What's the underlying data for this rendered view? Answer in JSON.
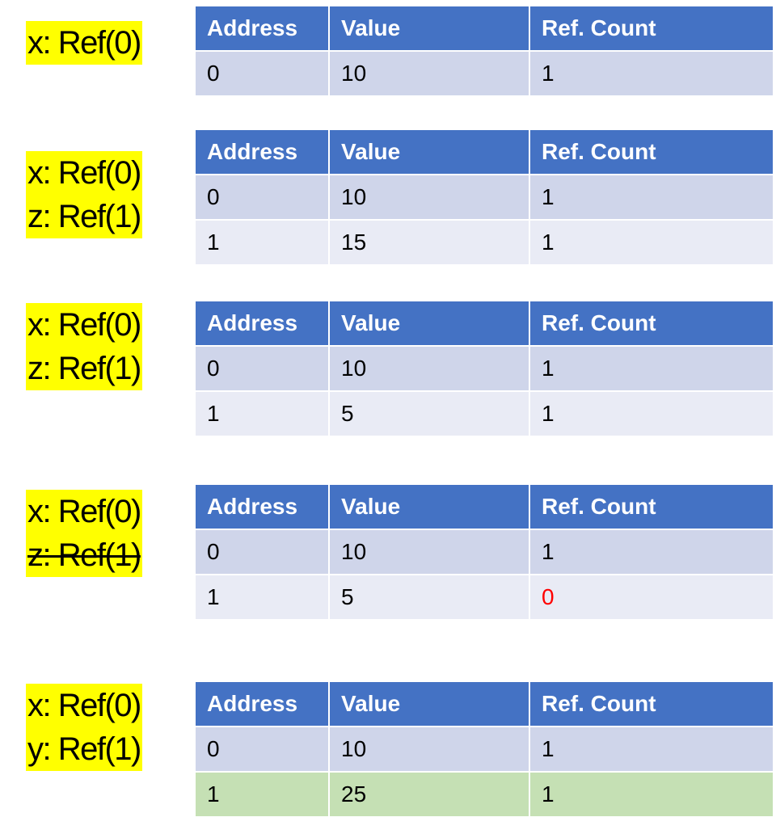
{
  "columns": [
    "Address",
    "Value",
    "Ref. Count"
  ],
  "colors": {
    "header": "#4472c4",
    "row_odd": "#cfd5ea",
    "row_even": "#e9ebf5",
    "row_new": "#c5e0b4",
    "var_highlight": "#ffff00",
    "zero_highlight": "#ff0000"
  },
  "steps": [
    {
      "vars": [
        {
          "text": "x: Ref(0)",
          "struck": false
        }
      ],
      "rows": [
        {
          "address": "0",
          "value": "10",
          "refcount": "1"
        }
      ]
    },
    {
      "vars": [
        {
          "text": "x: Ref(0)",
          "struck": false
        },
        {
          "text": "z: Ref(1)",
          "struck": false
        }
      ],
      "rows": [
        {
          "address": "0",
          "value": "10",
          "refcount": "1"
        },
        {
          "address": "1",
          "value": "15",
          "refcount": "1"
        }
      ]
    },
    {
      "vars": [
        {
          "text": "x: Ref(0)",
          "struck": false
        },
        {
          "text": "z: Ref(1)",
          "struck": false
        }
      ],
      "rows": [
        {
          "address": "0",
          "value": "10",
          "refcount": "1"
        },
        {
          "address": "1",
          "value": "5",
          "refcount": "1"
        }
      ]
    },
    {
      "vars": [
        {
          "text": "x: Ref(0)",
          "struck": false
        },
        {
          "text": "z: Ref(1)",
          "struck": true
        }
      ],
      "rows": [
        {
          "address": "0",
          "value": "10",
          "refcount": "1"
        },
        {
          "address": "1",
          "value": "5",
          "refcount": "0",
          "refcount_red": true
        }
      ]
    },
    {
      "vars": [
        {
          "text": "x: Ref(0)",
          "struck": false
        },
        {
          "text": "y: Ref(1)",
          "struck": false
        }
      ],
      "rows": [
        {
          "address": "0",
          "value": "10",
          "refcount": "1"
        },
        {
          "address": "1",
          "value": "25",
          "refcount": "1",
          "new": true
        }
      ]
    }
  ]
}
